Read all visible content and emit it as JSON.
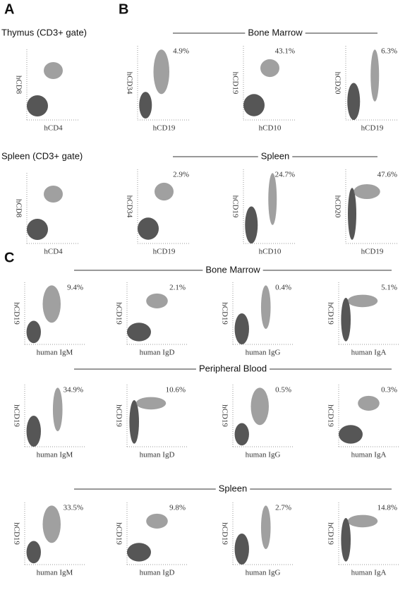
{
  "panel_labels": [
    "A",
    "B",
    "C"
  ],
  "panel_a": [
    {
      "title": "Thymus (CD3+ gate)",
      "ylabel": "hCD8",
      "xlabel": "hCD4"
    },
    {
      "title": "Spleen (CD3+ gate)",
      "ylabel": "hCD8",
      "xlabel": "hCD4"
    }
  ],
  "panel_b": [
    {
      "title": "Bone Marrow",
      "plots": [
        {
          "ylabel": "hCD34",
          "xlabel": "hCD19",
          "percent": "4.9%"
        },
        {
          "ylabel": "hCD19",
          "xlabel": "hCD10",
          "percent": "43.1%"
        },
        {
          "ylabel": "hCD20",
          "xlabel": "hCD19",
          "percent": "6.3%"
        }
      ]
    },
    {
      "title": "Spleen",
      "plots": [
        {
          "ylabel": "hCD34",
          "xlabel": "hCD19",
          "percent": "2.9%"
        },
        {
          "ylabel": "hCD19",
          "xlabel": "hCD10",
          "percent": "24.7%"
        },
        {
          "ylabel": "hCD20",
          "xlabel": "hCD19",
          "percent": "47.6%"
        }
      ]
    }
  ],
  "panel_c": [
    {
      "title": "Bone Marrow",
      "plots": [
        {
          "ylabel": "hCD19",
          "xlabel": "human IgM",
          "percent": "9.4%"
        },
        {
          "ylabel": "hCD19",
          "xlabel": "human IgD",
          "percent": "2.1%"
        },
        {
          "ylabel": "hCD19",
          "xlabel": "human IgG",
          "percent": "0.4%"
        },
        {
          "ylabel": "hCD19",
          "xlabel": "human IgA",
          "percent": "5.1%"
        }
      ]
    },
    {
      "title": "Peripheral Blood",
      "plots": [
        {
          "ylabel": "hCD19",
          "xlabel": "human IgM",
          "percent": "34.9%"
        },
        {
          "ylabel": "hCD19",
          "xlabel": "human IgD",
          "percent": "10.6%"
        },
        {
          "ylabel": "hCD19",
          "xlabel": "human IgG",
          "percent": "0.5%"
        },
        {
          "ylabel": "hCD19",
          "xlabel": "human IgA",
          "percent": "0.3%"
        }
      ]
    },
    {
      "title": "Spleen",
      "plots": [
        {
          "ylabel": "hCD19",
          "xlabel": "human IgM",
          "percent": "33.5%"
        },
        {
          "ylabel": "hCD19",
          "xlabel": "human IgD",
          "percent": "9.8%"
        },
        {
          "ylabel": "hCD19",
          "xlabel": "human IgG",
          "percent": "2.7%"
        },
        {
          "ylabel": "hCD19",
          "xlabel": "human IgA",
          "percent": "14.8%"
        }
      ]
    }
  ]
}
